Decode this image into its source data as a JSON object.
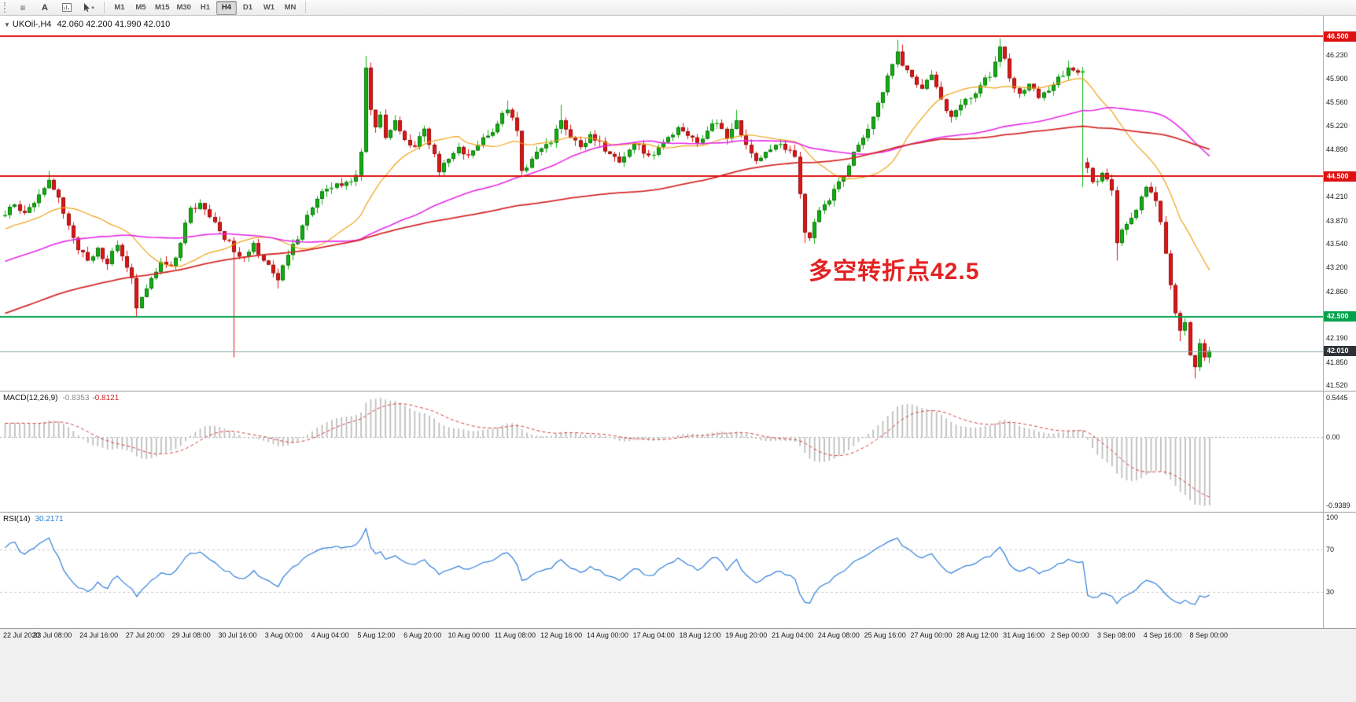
{
  "toolbar": {
    "text_tool_label": "A",
    "timeframes": [
      "M1",
      "M5",
      "M15",
      "M30",
      "H1",
      "H4",
      "D1",
      "W1",
      "MN"
    ],
    "active_timeframe": "H4"
  },
  "chart": {
    "symbol_header": "UKOil-,H4",
    "ohlc_header": "42.060 42.200 41.990 42.010",
    "annotation": {
      "text": "多空转折点42.5",
      "color": "#e32222"
    },
    "current_price": {
      "label": "42.010",
      "value": 42.01,
      "line_color": "#8fa6ad",
      "badge_color": "#2f3338"
    },
    "levels": [
      {
        "value": 46.5,
        "label": "46.500",
        "color": "#dd1111"
      },
      {
        "value": 44.5,
        "label": "44.500",
        "color": "#dd1111"
      },
      {
        "value": 42.5,
        "label": "42.500",
        "color": "#00a14b"
      }
    ],
    "scale_ticks": [
      "46.230",
      "45.900",
      "45.560",
      "45.220",
      "44.890",
      "44.210",
      "43.870",
      "43.540",
      "43.200",
      "42.860",
      "42.190",
      "41.850",
      "41.520"
    ]
  },
  "chart_data": {
    "type": "candlestick",
    "symbol": "UKOil-",
    "timeframe": "H4",
    "visible_price_range": [
      41.5,
      46.68
    ],
    "candle_count": 248,
    "up_color": "#10b010",
    "down_color": "#e01515",
    "close_path_anchors": [
      [
        0,
        43.95
      ],
      [
        2,
        44.1
      ],
      [
        4,
        43.98
      ],
      [
        6,
        44.12
      ],
      [
        9,
        44.45
      ],
      [
        11,
        44.2
      ],
      [
        13,
        43.8
      ],
      [
        15,
        43.45
      ],
      [
        17,
        43.3
      ],
      [
        19,
        43.48
      ],
      [
        21,
        43.25
      ],
      [
        23,
        43.52
      ],
      [
        25,
        43.2
      ],
      [
        26,
        43.05
      ],
      [
        27,
        42.62
      ],
      [
        28,
        42.78
      ],
      [
        30,
        43.05
      ],
      [
        32,
        43.28
      ],
      [
        34,
        43.22
      ],
      [
        36,
        43.55
      ],
      [
        38,
        44.05
      ],
      [
        40,
        44.12
      ],
      [
        42,
        43.92
      ],
      [
        44,
        43.72
      ],
      [
        46,
        43.58
      ],
      [
        47,
        43.42
      ],
      [
        49,
        43.35
      ],
      [
        51,
        43.55
      ],
      [
        53,
        43.3
      ],
      [
        55,
        43.12
      ],
      [
        56,
        43.02
      ],
      [
        58,
        43.38
      ],
      [
        60,
        43.6
      ],
      [
        62,
        43.95
      ],
      [
        64,
        44.18
      ],
      [
        66,
        44.32
      ],
      [
        68,
        44.4
      ],
      [
        70,
        44.42
      ],
      [
        72,
        44.52
      ],
      [
        73,
        44.85
      ],
      [
        74,
        46.05
      ],
      [
        75,
        45.45
      ],
      [
        76,
        45.2
      ],
      [
        77,
        45.38
      ],
      [
        78,
        45.05
      ],
      [
        80,
        45.3
      ],
      [
        82,
        45.02
      ],
      [
        84,
        44.92
      ],
      [
        86,
        45.18
      ],
      [
        88,
        44.82
      ],
      [
        89,
        44.56
      ],
      [
        91,
        44.75
      ],
      [
        93,
        44.92
      ],
      [
        95,
        44.8
      ],
      [
        97,
        44.95
      ],
      [
        99,
        45.08
      ],
      [
        101,
        45.25
      ],
      [
        103,
        45.45
      ],
      [
        105,
        45.15
      ],
      [
        106,
        44.58
      ],
      [
        108,
        44.75
      ],
      [
        110,
        44.9
      ],
      [
        112,
        44.98
      ],
      [
        114,
        45.3
      ],
      [
        116,
        45.05
      ],
      [
        118,
        44.92
      ],
      [
        120,
        45.1
      ],
      [
        122,
        45.0
      ],
      [
        124,
        44.82
      ],
      [
        126,
        44.7
      ],
      [
        128,
        44.88
      ],
      [
        130,
        44.95
      ],
      [
        132,
        44.8
      ],
      [
        134,
        44.92
      ],
      [
        136,
        45.06
      ],
      [
        138,
        45.2
      ],
      [
        140,
        45.08
      ],
      [
        142,
        44.98
      ],
      [
        144,
        45.15
      ],
      [
        146,
        45.26
      ],
      [
        148,
        45.04
      ],
      [
        150,
        45.3
      ],
      [
        152,
        44.95
      ],
      [
        154,
        44.72
      ],
      [
        156,
        44.85
      ],
      [
        158,
        44.95
      ],
      [
        160,
        44.88
      ],
      [
        162,
        44.78
      ],
      [
        163,
        44.25
      ],
      [
        164,
        43.7
      ],
      [
        165,
        43.62
      ],
      [
        166,
        43.85
      ],
      [
        168,
        44.1
      ],
      [
        170,
        44.32
      ],
      [
        172,
        44.5
      ],
      [
        174,
        44.85
      ],
      [
        176,
        45.05
      ],
      [
        178,
        45.35
      ],
      [
        180,
        45.7
      ],
      [
        182,
        46.1
      ],
      [
        183,
        46.28
      ],
      [
        184,
        46.08
      ],
      [
        186,
        45.92
      ],
      [
        188,
        45.75
      ],
      [
        190,
        45.95
      ],
      [
        192,
        45.6
      ],
      [
        194,
        45.35
      ],
      [
        196,
        45.52
      ],
      [
        198,
        45.62
      ],
      [
        200,
        45.8
      ],
      [
        202,
        45.92
      ],
      [
        204,
        46.35
      ],
      [
        205,
        46.18
      ],
      [
        206,
        45.9
      ],
      [
        208,
        45.68
      ],
      [
        210,
        45.82
      ],
      [
        212,
        45.62
      ],
      [
        214,
        45.72
      ],
      [
        216,
        45.92
      ],
      [
        218,
        46.05
      ],
      [
        220,
        45.98
      ],
      [
        221,
        46.0
      ],
      [
        222,
        44.62
      ],
      [
        223,
        44.42
      ],
      [
        225,
        44.55
      ],
      [
        227,
        44.3
      ],
      [
        228,
        43.55
      ],
      [
        230,
        43.82
      ],
      [
        232,
        44.02
      ],
      [
        234,
        44.35
      ],
      [
        236,
        44.15
      ],
      [
        237,
        43.85
      ],
      [
        238,
        43.4
      ],
      [
        239,
        42.95
      ],
      [
        240,
        42.55
      ],
      [
        241,
        42.3
      ],
      [
        242,
        42.42
      ],
      [
        243,
        41.95
      ],
      [
        244,
        41.78
      ],
      [
        245,
        42.12
      ],
      [
        246,
        41.92
      ],
      [
        247,
        42.01
      ]
    ],
    "wick_overrides": {
      "9": {
        "high": 44.58
      },
      "27": {
        "low": 42.5
      },
      "47": {
        "low": 41.92
      },
      "56": {
        "low": 42.9
      },
      "74": {
        "high": 46.22
      },
      "103": {
        "high": 45.58
      },
      "114": {
        "high": 45.52
      },
      "150": {
        "high": 45.45
      },
      "164": {
        "low": 43.55
      },
      "183": {
        "high": 46.45
      },
      "184": {
        "high": 46.38
      },
      "204": {
        "high": 46.47
      },
      "205": {
        "high": 46.28
      },
      "218": {
        "high": 46.15
      },
      "221": {
        "low": 44.35,
        "high": 46.06
      },
      "228": {
        "low": 43.3
      },
      "241": {
        "low": 42.15
      },
      "244": {
        "low": 41.62
      }
    },
    "open_overrides": {
      "222": 44.7
    },
    "moving_averages": [
      {
        "period": 20,
        "color": "#efa318"
      },
      {
        "period": 60,
        "color": "#e629e6"
      },
      {
        "period": 120,
        "color": "#d42b2b"
      }
    ]
  },
  "macd": {
    "header_name": "MACD(12,26,9)",
    "value_main": "-0.8353",
    "value_signal": "-0.8121",
    "max": 0.5445,
    "min": -0.9389,
    "hist_color": "#bfbfbf",
    "signal_color": "#d43d3d",
    "scale": [
      {
        "label": "0.5445",
        "value": 0.5445
      },
      {
        "label": "0.00",
        "value": 0
      },
      {
        "label": "-0.9389",
        "value": -0.9389
      }
    ]
  },
  "rsi": {
    "header_name": "RSI(14)",
    "value": "30.2171",
    "levels": [
      70,
      30
    ],
    "line_color": "#2f7ed8",
    "scale": [
      {
        "label": "100",
        "value": 100
      },
      {
        "label": "70",
        "value": 70
      },
      {
        "label": "30",
        "value": 30
      }
    ]
  },
  "time_axis": {
    "labels": [
      "22 Jul 2020",
      "23 Jul 08:00",
      "24 Jul 16:00",
      "27 Jul 20:00",
      "29 Jul 08:00",
      "30 Jul 16:00",
      "3 Aug 00:00",
      "4 Aug 04:00",
      "5 Aug 12:00",
      "6 Aug 20:00",
      "10 Aug 00:00",
      "11 Aug 08:00",
      "12 Aug 16:00",
      "14 Aug 00:00",
      "17 Aug 04:00",
      "18 Aug 12:00",
      "19 Aug 20:00",
      "21 Aug 04:00",
      "24 Aug 08:00",
      "25 Aug 16:00",
      "27 Aug 00:00",
      "28 Aug 12:00",
      "31 Aug 16:00",
      "2 Sep 00:00",
      "3 Sep 08:00",
      "4 Sep 16:00",
      "8 Sep 00:00"
    ]
  }
}
